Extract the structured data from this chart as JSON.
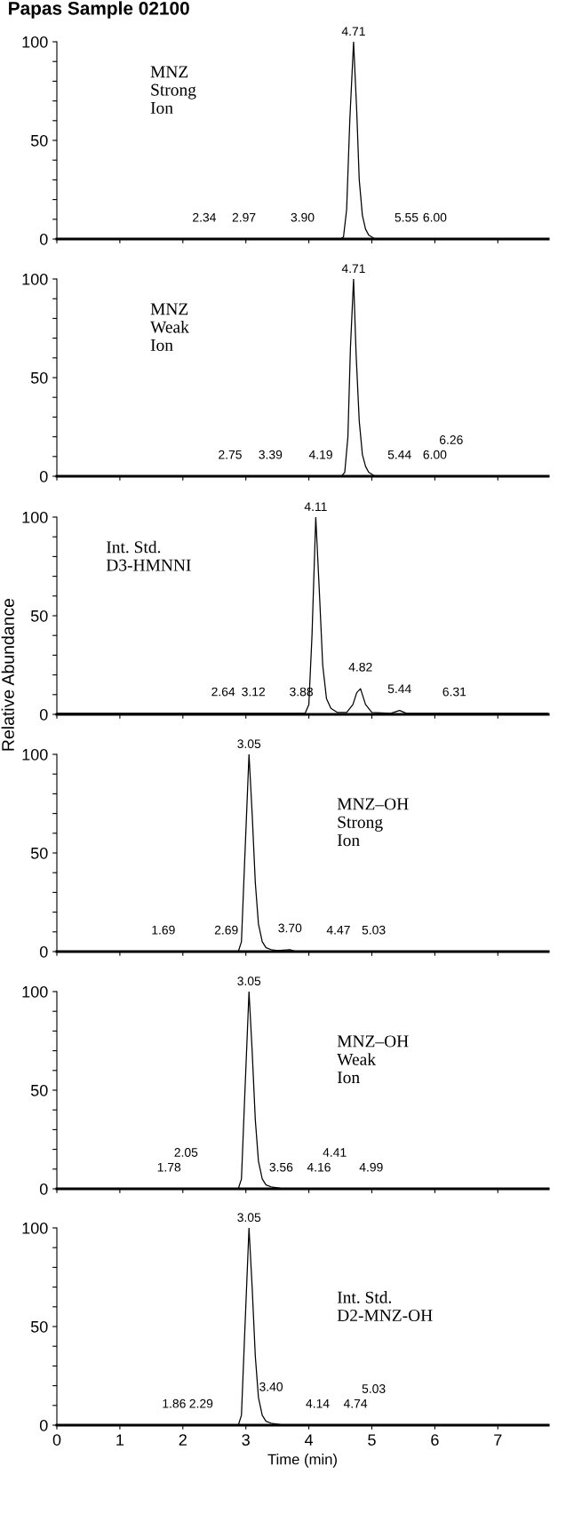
{
  "chart_data": [
    {
      "type": "line",
      "title": "Papas Sample 02100",
      "xlim": [
        0,
        7.8
      ],
      "ylim": [
        0,
        100
      ],
      "yticks": [
        0,
        {
          "value": 10,
          "label": null
        },
        {
          "value": 20,
          "label": null
        },
        {
          "value": 30,
          "label": null
        },
        {
          "value": 40,
          "label": null
        },
        50,
        {
          "value": 60,
          "label": null
        },
        {
          "value": 70,
          "label": null
        },
        {
          "value": 80,
          "label": null
        },
        {
          "value": 90,
          "label": null
        },
        100
      ],
      "xticks": [
        0,
        1,
        2,
        3,
        4,
        5,
        6,
        7
      ],
      "tick_labels": "y",
      "grid": false,
      "legend": false,
      "marker": "none",
      "series": [
        {
          "color": "#000000",
          "x": [
            0,
            4.5,
            4.55,
            4.6,
            4.65,
            4.71,
            4.76,
            4.8,
            4.85,
            4.9,
            4.95,
            5.0,
            5.05,
            7.8
          ],
          "values": [
            0,
            0,
            1,
            15,
            60,
            100,
            65,
            30,
            12,
            5,
            2,
            1,
            0,
            0
          ]
        }
      ],
      "annotations": [
        "MNZ\nStrong\nIon",
        {
          "text": "4.71",
          "x": 4.71,
          "y": 100
        },
        {
          "text": "2.34",
          "x": 2.34,
          "y": 0
        },
        {
          "text": "2.97",
          "x": 2.97,
          "y": 0
        },
        {
          "text": "3.90",
          "x": 3.9,
          "y": 0
        },
        {
          "text": "5.55",
          "x": 5.55,
          "y": 0
        },
        {
          "text": "6.00",
          "x": 6.0,
          "y": 0
        }
      ]
    },
    {
      "type": "line",
      "xlim": [
        0,
        7.8
      ],
      "ylim": [
        0,
        100
      ],
      "yticks": [
        0,
        {
          "value": 10,
          "label": null
        },
        {
          "value": 20,
          "label": null
        },
        {
          "value": 30,
          "label": null
        },
        {
          "value": 40,
          "label": null
        },
        50,
        {
          "value": 60,
          "label": null
        },
        {
          "value": 70,
          "label": null
        },
        {
          "value": 80,
          "label": null
        },
        {
          "value": 90,
          "label": null
        },
        100
      ],
      "xticks": [
        0,
        1,
        2,
        3,
        4,
        5,
        6,
        7
      ],
      "tick_labels": "y",
      "grid": false,
      "legend": false,
      "marker": "none",
      "series": [
        {
          "color": "#000000",
          "x": [
            0,
            4.52,
            4.57,
            4.62,
            4.66,
            4.71,
            4.75,
            4.8,
            4.85,
            4.9,
            4.95,
            5.0,
            5.05,
            7.8
          ],
          "values": [
            0,
            0,
            2,
            20,
            65,
            100,
            62,
            28,
            11,
            5,
            2,
            1,
            0,
            0
          ]
        }
      ],
      "annotations": [
        "MNZ\nWeak\nIon",
        {
          "text": "4.71",
          "x": 4.71,
          "y": 100
        },
        {
          "text": "2.75",
          "x": 2.75,
          "y": 0
        },
        {
          "text": "3.39",
          "x": 3.39,
          "y": 0
        },
        {
          "text": "4.19",
          "x": 4.19,
          "y": 0
        },
        {
          "text": "5.44",
          "x": 5.44,
          "y": 0
        },
        {
          "text": "6.00",
          "x": 6.0,
          "y": 0
        },
        {
          "text": "6.26",
          "x": 6.26,
          "y": 0
        }
      ]
    },
    {
      "type": "line",
      "xlim": [
        0,
        7.8
      ],
      "ylim": [
        0,
        100
      ],
      "yticks": [
        0,
        {
          "value": 10,
          "label": null
        },
        {
          "value": 20,
          "label": null
        },
        {
          "value": 30,
          "label": null
        },
        {
          "value": 40,
          "label": null
        },
        50,
        {
          "value": 60,
          "label": null
        },
        {
          "value": 70,
          "label": null
        },
        {
          "value": 80,
          "label": null
        },
        {
          "value": 90,
          "label": null
        },
        100
      ],
      "xticks": [
        0,
        1,
        2,
        3,
        4,
        5,
        6,
        7
      ],
      "tick_labels": "y",
      "ylabel": "Relative Abundance",
      "grid": false,
      "legend": false,
      "marker": "none",
      "series": [
        {
          "color": "#000000",
          "x": [
            0,
            3.94,
            4.0,
            4.05,
            4.11,
            4.17,
            4.22,
            4.28,
            4.35,
            4.45,
            4.6,
            4.7,
            4.76,
            4.82,
            4.9,
            5.0,
            5.3,
            5.44,
            5.55,
            7.8
          ],
          "values": [
            0.5,
            0.5,
            5,
            40,
            100,
            60,
            25,
            8,
            3,
            1,
            1,
            5,
            11,
            13,
            5,
            1,
            0.5,
            2,
            0.5,
            0.5
          ]
        }
      ],
      "annotations": [
        "Int. Std.\nD3-HMNNI",
        {
          "text": "4.11",
          "x": 4.11,
          "y": 100
        },
        {
          "text": "4.82",
          "x": 4.82,
          "y": 13
        },
        {
          "text": "5.44",
          "x": 5.44,
          "y": 2
        },
        {
          "text": "2.64",
          "x": 2.64,
          "y": 0.5
        },
        {
          "text": "3.12",
          "x": 3.12,
          "y": 0.5
        },
        {
          "text": "3.88",
          "x": 3.88,
          "y": 0.5
        },
        {
          "text": "6.31",
          "x": 6.31,
          "y": 0.5
        }
      ]
    },
    {
      "type": "line",
      "xlim": [
        0,
        7.8
      ],
      "ylim": [
        0,
        100
      ],
      "yticks": [
        0,
        {
          "value": 10,
          "label": null
        },
        {
          "value": 20,
          "label": null
        },
        {
          "value": 30,
          "label": null
        },
        {
          "value": 40,
          "label": null
        },
        50,
        {
          "value": 60,
          "label": null
        },
        {
          "value": 70,
          "label": null
        },
        {
          "value": 80,
          "label": null
        },
        {
          "value": 90,
          "label": null
        },
        100
      ],
      "xticks": [
        0,
        1,
        2,
        3,
        4,
        5,
        6,
        7
      ],
      "tick_labels": "y",
      "grid": false,
      "legend": false,
      "marker": "none",
      "series": [
        {
          "color": "#000000",
          "x": [
            0,
            2.88,
            2.93,
            2.98,
            3.05,
            3.1,
            3.15,
            3.2,
            3.26,
            3.32,
            3.4,
            3.5,
            3.7,
            3.8,
            7.8
          ],
          "values": [
            0,
            0,
            5,
            45,
            100,
            70,
            35,
            14,
            5,
            2,
            1,
            0.5,
            1,
            0,
            0
          ]
        }
      ],
      "annotations": [
        "MNZ–OH\nStrong\nIon",
        {
          "text": "3.05",
          "x": 3.05,
          "y": 100
        },
        {
          "text": "1.69",
          "x": 1.69,
          "y": 0
        },
        {
          "text": "2.69",
          "x": 2.69,
          "y": 0
        },
        {
          "text": "3.70",
          "x": 3.7,
          "y": 1
        },
        {
          "text": "4.47",
          "x": 4.47,
          "y": 0
        },
        {
          "text": "5.03",
          "x": 5.03,
          "y": 0
        }
      ]
    },
    {
      "type": "line",
      "xlim": [
        0,
        7.8
      ],
      "ylim": [
        0,
        100
      ],
      "yticks": [
        0,
        {
          "value": 10,
          "label": null
        },
        {
          "value": 20,
          "label": null
        },
        {
          "value": 30,
          "label": null
        },
        {
          "value": 40,
          "label": null
        },
        50,
        {
          "value": 60,
          "label": null
        },
        {
          "value": 70,
          "label": null
        },
        {
          "value": 80,
          "label": null
        },
        {
          "value": 90,
          "label": null
        },
        100
      ],
      "xticks": [
        0,
        1,
        2,
        3,
        4,
        5,
        6,
        7
      ],
      "tick_labels": "y",
      "grid": false,
      "legend": false,
      "marker": "none",
      "series": [
        {
          "color": "#000000",
          "x": [
            0,
            2.88,
            2.93,
            2.98,
            3.05,
            3.1,
            3.15,
            3.2,
            3.26,
            3.32,
            3.4,
            3.5,
            3.6,
            7.8
          ],
          "values": [
            0,
            0,
            5,
            45,
            100,
            70,
            35,
            14,
            5,
            2,
            1,
            0.5,
            0,
            0
          ]
        }
      ],
      "annotations": [
        "MNZ–OH\nWeak\nIon",
        {
          "text": "3.05",
          "x": 3.05,
          "y": 100
        },
        {
          "text": "1.78",
          "x": 1.78,
          "y": 0
        },
        {
          "text": "2.05",
          "x": 2.05,
          "y": 0
        },
        {
          "text": "3.56",
          "x": 3.56,
          "y": 0
        },
        {
          "text": "4.16",
          "x": 4.16,
          "y": 0
        },
        {
          "text": "4.41",
          "x": 4.41,
          "y": 0
        },
        {
          "text": "4.99",
          "x": 4.99,
          "y": 0
        }
      ]
    },
    {
      "type": "line",
      "xlim": [
        0,
        7.8
      ],
      "ylim": [
        0,
        100
      ],
      "yticks": [
        0,
        {
          "value": 10,
          "label": null
        },
        {
          "value": 20,
          "label": null
        },
        {
          "value": 30,
          "label": null
        },
        {
          "value": 40,
          "label": null
        },
        50,
        {
          "value": 60,
          "label": null
        },
        {
          "value": 70,
          "label": null
        },
        {
          "value": 80,
          "label": null
        },
        {
          "value": 90,
          "label": null
        },
        100
      ],
      "xticks": [
        0,
        1,
        2,
        3,
        4,
        5,
        6,
        7
      ],
      "xlabel": "Time (min)",
      "grid": false,
      "legend": false,
      "marker": "none",
      "series": [
        {
          "color": "#000000",
          "x": [
            0,
            2.88,
            2.93,
            2.98,
            3.05,
            3.1,
            3.15,
            3.2,
            3.26,
            3.32,
            3.4,
            3.5,
            3.6,
            7.8
          ],
          "values": [
            0,
            0,
            5,
            45,
            100,
            70,
            35,
            14,
            5,
            2,
            1,
            0.5,
            0,
            0
          ]
        }
      ],
      "annotations": [
        "Int. Std.\nD2-MNZ-OH",
        {
          "text": "3.05",
          "x": 3.05,
          "y": 100
        },
        {
          "text": "1.86",
          "x": 1.86,
          "y": 0
        },
        {
          "text": "2.29",
          "x": 2.29,
          "y": 0
        },
        {
          "text": "3.40",
          "x": 3.4,
          "y": 1
        },
        {
          "text": "4.14",
          "x": 4.14,
          "y": 0
        },
        {
          "text": "4.74",
          "x": 4.74,
          "y": 0
        },
        {
          "text": "5.03",
          "x": 5.03,
          "y": 0
        }
      ]
    }
  ]
}
